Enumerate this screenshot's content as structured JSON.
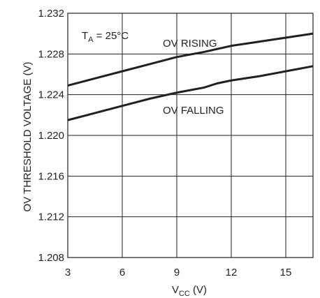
{
  "chart_data": {
    "type": "line",
    "title": "",
    "xlabel_main": "V",
    "xlabel_sub": "CC",
    "xlabel_unit": " (V)",
    "ylabel": "OV THRESHOLD VOLTAGE (V)",
    "xlim": [
      3,
      16.5
    ],
    "ylim": [
      1.208,
      1.232
    ],
    "x_ticks": [
      3,
      6,
      9,
      12,
      15
    ],
    "x_tick_labels": [
      "3",
      "6",
      "9",
      "12",
      "15"
    ],
    "y_ticks": [
      1.208,
      1.212,
      1.216,
      1.22,
      1.224,
      1.228,
      1.232
    ],
    "y_tick_labels": [
      "1.208",
      "1.212",
      "1.216",
      "1.220",
      "1.224",
      "1.228",
      "1.232"
    ],
    "grid": true,
    "annotation": {
      "main": "T",
      "sub": "A",
      "rest": " = 25°C"
    },
    "series": [
      {
        "name": "OV RISING",
        "x": [
          3,
          4.5,
          6,
          7.5,
          9,
          10.5,
          12,
          13.5,
          15,
          16.5
        ],
        "y": [
          1.2249,
          1.2256,
          1.2263,
          1.227,
          1.2277,
          1.2282,
          1.2288,
          1.2292,
          1.2296,
          1.23
        ]
      },
      {
        "name": "OV FALLING",
        "x": [
          3,
          4.5,
          6,
          7.5,
          9,
          10.5,
          11.2,
          12,
          13.5,
          15,
          16.5
        ],
        "y": [
          1.2215,
          1.2222,
          1.2229,
          1.2236,
          1.2242,
          1.2247,
          1.2251,
          1.2254,
          1.2258,
          1.2263,
          1.2268
        ]
      }
    ],
    "series_color": "#231f20",
    "grid_color": "#231f20"
  }
}
